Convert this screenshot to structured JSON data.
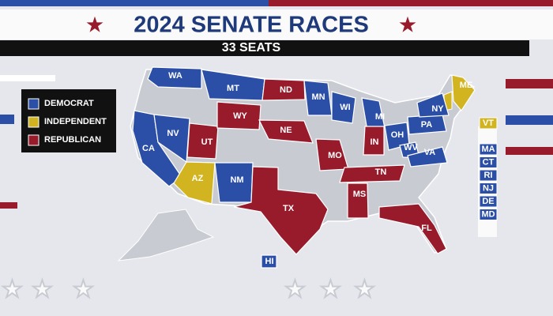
{
  "header": {
    "title": "2024 SENATE RACES",
    "subtitle": "33 SEATS"
  },
  "legend": [
    {
      "label": "DEMOCRAT",
      "color": "#2b4fa6"
    },
    {
      "label": "INDEPENDENT",
      "color": "#d2b420"
    },
    {
      "label": "REPUBLICAN",
      "color": "#981b2c"
    }
  ],
  "states": [
    {
      "label": "WA",
      "color": "#2b4fa6"
    },
    {
      "label": "MT",
      "color": "#2b4fa6"
    },
    {
      "label": "ND",
      "color": "#981b2c"
    },
    {
      "label": "MN",
      "color": "#2b4fa6"
    },
    {
      "label": "WI",
      "color": "#2b4fa6"
    },
    {
      "label": "MI",
      "color": "#2b4fa6"
    },
    {
      "label": "CA",
      "color": "#2b4fa6"
    },
    {
      "label": "NV",
      "color": "#2b4fa6"
    },
    {
      "label": "UT",
      "color": "#981b2c"
    },
    {
      "label": "WY",
      "color": "#981b2c"
    },
    {
      "label": "NE",
      "color": "#981b2c"
    },
    {
      "label": "AZ",
      "color": "#d2b420"
    },
    {
      "label": "NM",
      "color": "#2b4fa6"
    },
    {
      "label": "TX",
      "color": "#981b2c"
    },
    {
      "label": "MO",
      "color": "#981b2c"
    },
    {
      "label": "IN",
      "color": "#981b2c"
    },
    {
      "label": "TN",
      "color": "#981b2c"
    },
    {
      "label": "MS",
      "color": "#981b2c"
    },
    {
      "label": "FL",
      "color": "#981b2c"
    },
    {
      "label": "OH",
      "color": "#2b4fa6"
    },
    {
      "label": "WV",
      "color": "#2b4fa6"
    },
    {
      "label": "VA",
      "color": "#2b4fa6"
    },
    {
      "label": "PA",
      "color": "#2b4fa6"
    },
    {
      "label": "NY",
      "color": "#2b4fa6"
    },
    {
      "label": "ME",
      "color": "#d2b420"
    },
    {
      "label": "HI",
      "color": "#2b4fa6"
    }
  ],
  "small_states": [
    {
      "label": "VT",
      "color": "#d2b420"
    },
    {
      "label": "MA",
      "color": "#2b4fa6"
    },
    {
      "label": "CT",
      "color": "#2b4fa6"
    },
    {
      "label": "RI",
      "color": "#2b4fa6"
    },
    {
      "label": "NJ",
      "color": "#2b4fa6"
    },
    {
      "label": "DE",
      "color": "#2b4fa6"
    },
    {
      "label": "MD",
      "color": "#2b4fa6"
    }
  ]
}
